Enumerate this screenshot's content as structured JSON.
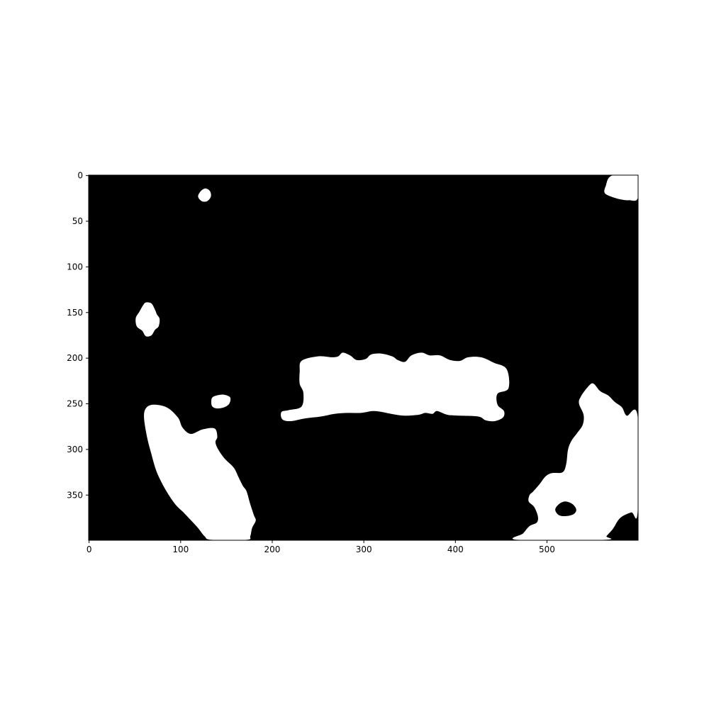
{
  "chart_data": {
    "type": "heatmap",
    "subtype": "binary-mask-image",
    "title": "",
    "xlabel": "",
    "ylabel": "",
    "image_shape": [
      400,
      600
    ],
    "xlim": [
      -0.5,
      599.5
    ],
    "ylim": [
      399.5,
      -0.5
    ],
    "xticks": [
      0,
      100,
      200,
      300,
      400,
      500
    ],
    "yticks": [
      0,
      50,
      100,
      150,
      200,
      250,
      300,
      350
    ],
    "xtick_labels": [
      "0",
      "100",
      "200",
      "300",
      "400",
      "500"
    ],
    "ytick_labels": [
      "0",
      "50",
      "100",
      "150",
      "200",
      "250",
      "300",
      "350"
    ],
    "colormap": {
      "background": "#000000",
      "foreground": "#ffffff"
    },
    "regions": [
      {
        "name": "small-blob-top",
        "value": 1,
        "outline": [
          [
            122,
            17
          ],
          [
            127,
            14
          ],
          [
            132,
            17
          ],
          [
            133,
            23
          ],
          [
            129,
            28
          ],
          [
            123,
            28
          ],
          [
            119,
            23
          ]
        ]
      },
      {
        "name": "top-right-corner-blob",
        "value": 1,
        "outline": [
          [
            571,
            0
          ],
          [
            599,
            0
          ],
          [
            599,
            25
          ],
          [
            590,
            27
          ],
          [
            580,
            26
          ],
          [
            570,
            23
          ],
          [
            563,
            19
          ],
          [
            564,
            12
          ]
        ]
      },
      {
        "name": "left-blob",
        "value": 1,
        "outline": [
          [
            62,
            139
          ],
          [
            68,
            140
          ],
          [
            72,
            147
          ],
          [
            74,
            152
          ],
          [
            77,
            157
          ],
          [
            76,
            165
          ],
          [
            72,
            169
          ],
          [
            68,
            175
          ],
          [
            62,
            176
          ],
          [
            58,
            170
          ],
          [
            52,
            165
          ],
          [
            51,
            156
          ],
          [
            55,
            149
          ],
          [
            59,
            142
          ]
        ]
      },
      {
        "name": "small-blob-middle",
        "value": 1,
        "outline": [
          [
            134,
            244
          ],
          [
            139,
            241
          ],
          [
            147,
            240
          ],
          [
            154,
            243
          ],
          [
            153,
            250
          ],
          [
            147,
            254
          ],
          [
            139,
            255
          ],
          [
            134,
            252
          ]
        ]
      },
      {
        "name": "central-band",
        "value": 1,
        "outline": [
          [
            232,
            203
          ],
          [
            250,
            198
          ],
          [
            265,
            199
          ],
          [
            272,
            198
          ],
          [
            277,
            194
          ],
          [
            285,
            197
          ],
          [
            292,
            202
          ],
          [
            302,
            201
          ],
          [
            308,
            196
          ],
          [
            319,
            195
          ],
          [
            331,
            198
          ],
          [
            337,
            202
          ],
          [
            345,
            204
          ],
          [
            352,
            197
          ],
          [
            363,
            194
          ],
          [
            372,
            197
          ],
          [
            383,
            197
          ],
          [
            394,
            202
          ],
          [
            405,
            203
          ],
          [
            414,
            199
          ],
          [
            428,
            199
          ],
          [
            442,
            205
          ],
          [
            456,
            212
          ],
          [
            458,
            233
          ],
          [
            446,
            239
          ],
          [
            446,
            251
          ],
          [
            453,
            258
          ],
          [
            452,
            265
          ],
          [
            443,
            269
          ],
          [
            433,
            268
          ],
          [
            425,
            264
          ],
          [
            403,
            263
          ],
          [
            391,
            262
          ],
          [
            380,
            258
          ],
          [
            375,
            261
          ],
          [
            367,
            260
          ],
          [
            360,
            262
          ],
          [
            344,
            263
          ],
          [
            330,
            261
          ],
          [
            320,
            259
          ],
          [
            310,
            258
          ],
          [
            297,
            260
          ],
          [
            283,
            260
          ],
          [
            268,
            261
          ],
          [
            253,
            264
          ],
          [
            236,
            266
          ],
          [
            220,
            269
          ],
          [
            211,
            267
          ],
          [
            210,
            259
          ],
          [
            218,
            257
          ],
          [
            232,
            253
          ],
          [
            234,
            238
          ],
          [
            230,
            228
          ],
          [
            230,
            215
          ]
        ]
      },
      {
        "name": "bottom-left-diagonal-blob",
        "value": 1,
        "outline": [
          [
            62,
            255
          ],
          [
            70,
            251
          ],
          [
            85,
            254
          ],
          [
            97,
            265
          ],
          [
            102,
            276
          ],
          [
            111,
            283
          ],
          [
            124,
            278
          ],
          [
            137,
            277
          ],
          [
            140,
            286
          ],
          [
            138,
            292
          ],
          [
            141,
            300
          ],
          [
            148,
            310
          ],
          [
            158,
            320
          ],
          [
            163,
            330
          ],
          [
            168,
            340
          ],
          [
            172,
            346
          ],
          [
            176,
            360
          ],
          [
            180,
            372
          ],
          [
            182,
            378
          ],
          [
            178,
            386
          ],
          [
            176,
            395
          ],
          [
            172,
            399
          ],
          [
            134,
            399
          ],
          [
            126,
            395
          ],
          [
            118,
            385
          ],
          [
            104,
            370
          ],
          [
            94,
            360
          ],
          [
            84,
            345
          ],
          [
            74,
            325
          ],
          [
            68,
            305
          ],
          [
            63,
            285
          ],
          [
            60,
            265
          ]
        ]
      },
      {
        "name": "bottom-right-blob",
        "value": 1,
        "outline": [
          [
            546,
            230
          ],
          [
            551,
            228
          ],
          [
            558,
            236
          ],
          [
            567,
            241
          ],
          [
            574,
            248
          ],
          [
            582,
            254
          ],
          [
            587,
            263
          ],
          [
            599,
            264
          ],
          [
            599,
            368
          ],
          [
            592,
            369
          ],
          [
            580,
            375
          ],
          [
            572,
            387
          ],
          [
            565,
            395
          ],
          [
            563,
            399
          ],
          [
            468,
            399
          ],
          [
            474,
            392
          ],
          [
            481,
            384
          ],
          [
            489,
            380
          ],
          [
            490,
            373
          ],
          [
            486,
            363
          ],
          [
            480,
            357
          ],
          [
            481,
            350
          ],
          [
            485,
            346
          ],
          [
            492,
            338
          ],
          [
            498,
            330
          ],
          [
            505,
            326
          ],
          [
            517,
            325
          ],
          [
            521,
            316
          ],
          [
            523,
            300
          ],
          [
            527,
            290
          ],
          [
            533,
            282
          ],
          [
            539,
            273
          ],
          [
            540,
            262
          ],
          [
            535,
            250
          ],
          [
            537,
            242
          ]
        ]
      },
      {
        "name": "hole-in-bottom-right-blob",
        "value": 0,
        "outline": [
          [
            513,
            360
          ],
          [
            520,
            357
          ],
          [
            528,
            360
          ],
          [
            532,
            366
          ],
          [
            529,
            371
          ],
          [
            521,
            373
          ],
          [
            513,
            372
          ],
          [
            509,
            366
          ]
        ]
      }
    ]
  }
}
